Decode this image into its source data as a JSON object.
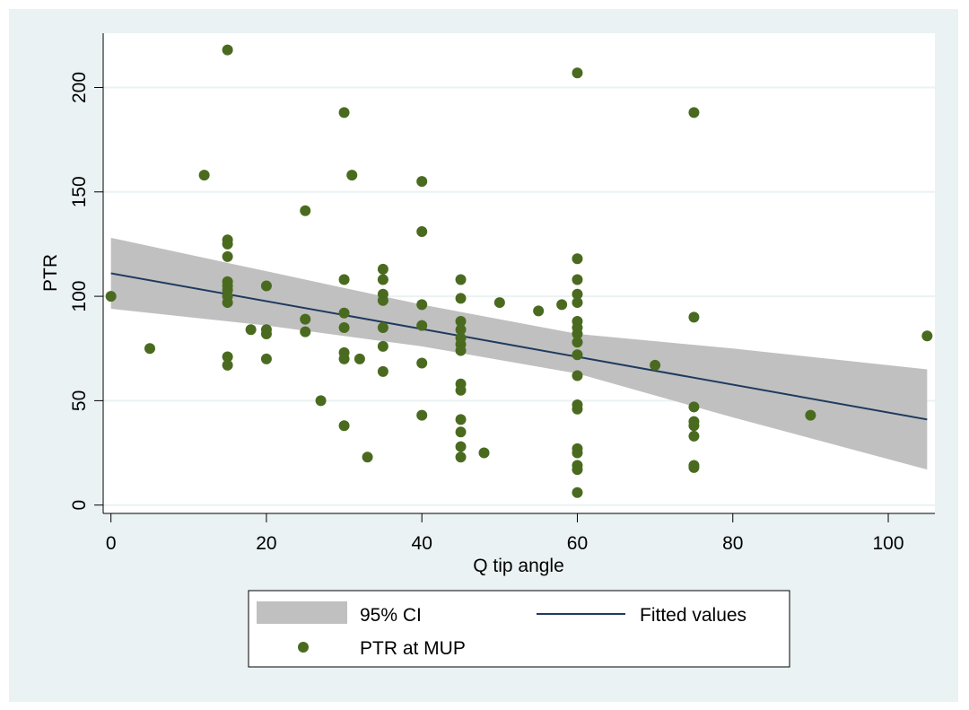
{
  "chart_data": {
    "type": "scatter",
    "xlabel": "Q tip angle",
    "ylabel": "PTR",
    "xlim": [
      -1,
      106
    ],
    "ylim": [
      -4,
      226
    ],
    "xticks": [
      0,
      20,
      40,
      60,
      80,
      100
    ],
    "yticks": [
      0,
      50,
      100,
      150,
      200
    ],
    "grid": "horizontal",
    "legend_position": "bottom",
    "colors": {
      "points": "#4a6b1f",
      "fit_line": "#1f3a5f",
      "ci_band": "#c0c0c0",
      "outer_background": "#eaf2f3",
      "plot_background": "#ffffff",
      "grid": "#eaf2f3"
    },
    "legend": [
      {
        "label": "95% CI",
        "kind": "band"
      },
      {
        "label": "Fitted values",
        "kind": "line"
      },
      {
        "label": "PTR at MUP",
        "kind": "marker"
      }
    ],
    "series": [
      {
        "name": "PTR at MUP",
        "kind": "scatter",
        "points": [
          [
            0,
            100
          ],
          [
            5,
            75
          ],
          [
            12,
            158
          ],
          [
            15,
            218
          ],
          [
            15,
            127
          ],
          [
            15,
            125
          ],
          [
            15,
            119
          ],
          [
            15,
            107
          ],
          [
            15,
            105
          ],
          [
            15,
            103
          ],
          [
            15,
            100
          ],
          [
            15,
            97
          ],
          [
            15,
            71
          ],
          [
            15,
            67
          ],
          [
            18,
            84
          ],
          [
            20,
            105
          ],
          [
            20,
            84
          ],
          [
            20,
            82
          ],
          [
            20,
            70
          ],
          [
            25,
            141
          ],
          [
            25,
            89
          ],
          [
            25,
            83
          ],
          [
            27,
            50
          ],
          [
            30,
            188
          ],
          [
            30,
            108
          ],
          [
            30,
            92
          ],
          [
            30,
            85
          ],
          [
            30,
            73
          ],
          [
            30,
            70
          ],
          [
            30,
            38
          ],
          [
            31,
            158
          ],
          [
            32,
            70
          ],
          [
            33,
            23
          ],
          [
            35,
            113
          ],
          [
            35,
            108
          ],
          [
            35,
            101
          ],
          [
            35,
            98
          ],
          [
            35,
            85
          ],
          [
            35,
            76
          ],
          [
            35,
            64
          ],
          [
            40,
            155
          ],
          [
            40,
            131
          ],
          [
            40,
            96
          ],
          [
            40,
            86
          ],
          [
            40,
            68
          ],
          [
            40,
            43
          ],
          [
            45,
            108
          ],
          [
            45,
            99
          ],
          [
            45,
            88
          ],
          [
            45,
            84
          ],
          [
            45,
            80
          ],
          [
            45,
            77
          ],
          [
            45,
            74
          ],
          [
            45,
            58
          ],
          [
            45,
            55
          ],
          [
            45,
            41
          ],
          [
            45,
            35
          ],
          [
            45,
            28
          ],
          [
            45,
            23
          ],
          [
            48,
            25
          ],
          [
            50,
            97
          ],
          [
            55,
            93
          ],
          [
            58,
            96
          ],
          [
            60,
            207
          ],
          [
            60,
            118
          ],
          [
            60,
            108
          ],
          [
            60,
            101
          ],
          [
            60,
            97
          ],
          [
            60,
            88
          ],
          [
            60,
            85
          ],
          [
            60,
            82
          ],
          [
            60,
            78
          ],
          [
            60,
            72
          ],
          [
            60,
            62
          ],
          [
            60,
            48
          ],
          [
            60,
            46
          ],
          [
            60,
            27
          ],
          [
            60,
            25
          ],
          [
            60,
            19
          ],
          [
            60,
            17
          ],
          [
            60,
            6
          ],
          [
            70,
            67
          ],
          [
            75,
            188
          ],
          [
            75,
            90
          ],
          [
            75,
            47
          ],
          [
            75,
            40
          ],
          [
            75,
            38
          ],
          [
            75,
            33
          ],
          [
            75,
            19
          ],
          [
            75,
            18
          ],
          [
            90,
            43
          ],
          [
            105,
            81
          ]
        ]
      },
      {
        "name": "Fitted values",
        "kind": "line",
        "points": [
          [
            0,
            111
          ],
          [
            105,
            41
          ]
        ]
      },
      {
        "name": "95% CI",
        "kind": "band",
        "x": [
          0,
          20,
          40,
          60,
          80,
          105
        ],
        "upper": [
          128,
          112,
          96,
          82,
          75,
          65
        ],
        "lower": [
          94,
          86,
          76,
          63,
          42,
          17
        ]
      }
    ]
  }
}
